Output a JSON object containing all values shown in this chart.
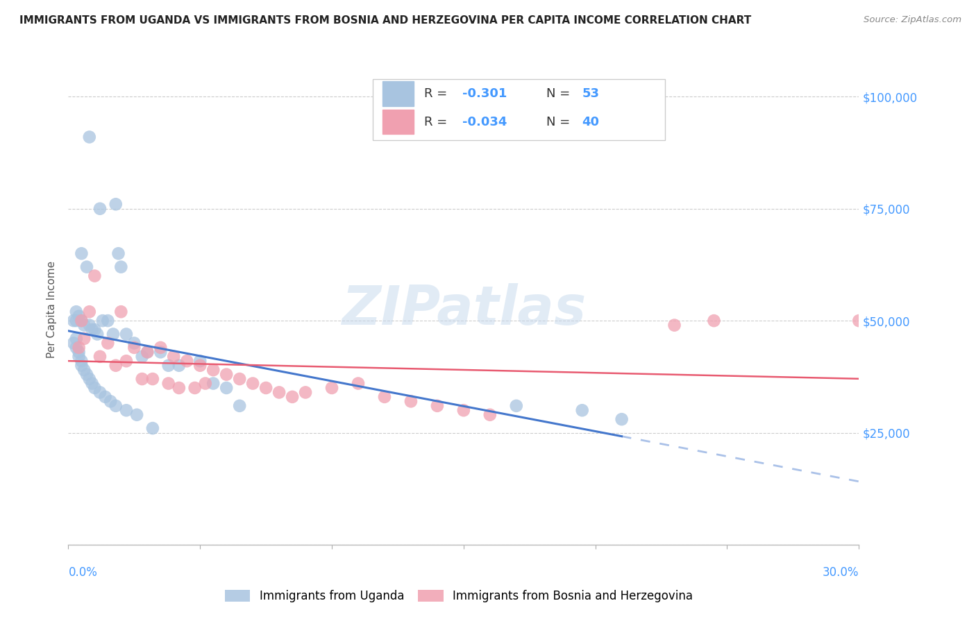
{
  "title": "IMMIGRANTS FROM UGANDA VS IMMIGRANTS FROM BOSNIA AND HERZEGOVINA PER CAPITA INCOME CORRELATION CHART",
  "source": "Source: ZipAtlas.com",
  "ylabel": "Per Capita Income",
  "yticks": [
    0,
    25000,
    50000,
    75000,
    100000
  ],
  "ytick_labels": [
    "",
    "$25,000",
    "$50,000",
    "$75,000",
    "$100,000"
  ],
  "xlim": [
    0.0,
    0.3
  ],
  "ylim": [
    0,
    105000
  ],
  "watermark_zip": "ZIP",
  "watermark_atlas": "atlas",
  "legend_r1": "-0.301",
  "legend_n1": "53",
  "legend_r2": "-0.034",
  "legend_n2": "40",
  "legend_label1": "Immigrants from Uganda",
  "legend_label2": "Immigrants from Bosnia and Herzegovina",
  "color_uganda": "#a8c4e0",
  "color_bosnia": "#f0a0b0",
  "color_uganda_line": "#4477cc",
  "color_bosnia_line": "#e85a70",
  "color_right_labels": "#4499ff",
  "uganda_x": [
    0.008,
    0.012,
    0.018,
    0.005,
    0.007,
    0.003,
    0.004,
    0.003,
    0.005,
    0.006,
    0.008,
    0.009,
    0.01,
    0.011,
    0.013,
    0.015,
    0.017,
    0.019,
    0.02,
    0.022,
    0.025,
    0.028,
    0.03,
    0.035,
    0.038,
    0.042,
    0.05,
    0.055,
    0.06,
    0.065,
    0.003,
    0.003,
    0.004,
    0.004,
    0.005,
    0.005,
    0.006,
    0.007,
    0.008,
    0.009,
    0.01,
    0.012,
    0.014,
    0.016,
    0.018,
    0.022,
    0.026,
    0.032,
    0.17,
    0.195,
    0.21,
    0.002,
    0.002
  ],
  "uganda_y": [
    91000,
    75000,
    76000,
    65000,
    62000,
    52000,
    51000,
    50000,
    50000,
    49000,
    49000,
    48000,
    48000,
    47000,
    50000,
    50000,
    47000,
    65000,
    62000,
    47000,
    45000,
    42000,
    43000,
    43000,
    40000,
    40000,
    41000,
    36000,
    35000,
    31000,
    46000,
    44000,
    43000,
    42000,
    41000,
    40000,
    39000,
    38000,
    37000,
    36000,
    35000,
    34000,
    33000,
    32000,
    31000,
    30000,
    29000,
    26000,
    31000,
    30000,
    28000,
    50000,
    45000
  ],
  "bosnia_x": [
    0.005,
    0.01,
    0.015,
    0.02,
    0.025,
    0.03,
    0.035,
    0.04,
    0.045,
    0.05,
    0.055,
    0.06,
    0.065,
    0.07,
    0.075,
    0.08,
    0.085,
    0.09,
    0.1,
    0.11,
    0.12,
    0.13,
    0.14,
    0.15,
    0.16,
    0.23,
    0.245,
    0.004,
    0.006,
    0.008,
    0.012,
    0.018,
    0.022,
    0.028,
    0.032,
    0.038,
    0.042,
    0.048,
    0.052,
    0.3
  ],
  "bosnia_y": [
    50000,
    60000,
    45000,
    52000,
    44000,
    43000,
    44000,
    42000,
    41000,
    40000,
    39000,
    38000,
    37000,
    36000,
    35000,
    34000,
    33000,
    34000,
    35000,
    36000,
    33000,
    32000,
    31000,
    30000,
    29000,
    49000,
    50000,
    44000,
    46000,
    52000,
    42000,
    40000,
    41000,
    37000,
    37000,
    36000,
    35000,
    35000,
    36000,
    50000
  ]
}
